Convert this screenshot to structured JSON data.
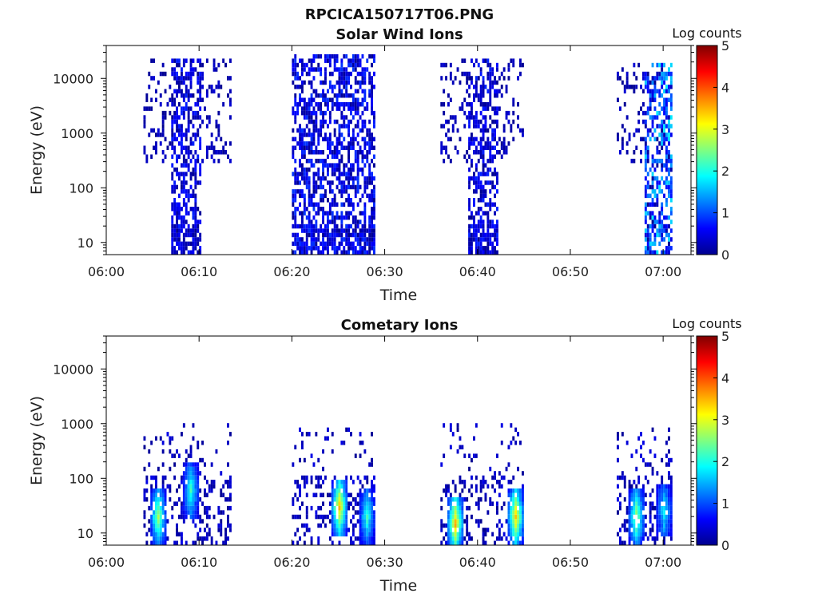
{
  "figure_title": "RPCICA150717T06.PNG",
  "colorbar": {
    "label": "Log counts",
    "min": 0,
    "max": 5,
    "ticks": [
      "0",
      "1",
      "2",
      "3",
      "4",
      "5"
    ]
  },
  "chart_data": [
    {
      "type": "heatmap",
      "title": "Solar Wind Ions",
      "xlabel": "Time",
      "ylabel": "Energy (eV)",
      "xlim": [
        "06:00",
        "07:03"
      ],
      "ylim": [
        6,
        40000
      ],
      "yscale": "log",
      "xticks": [
        "06:00",
        "06:10",
        "06:20",
        "06:30",
        "06:40",
        "06:50",
        "07:00"
      ],
      "yticks": [
        "10",
        "100",
        "1000",
        "10000"
      ],
      "bursts": [
        {
          "start": "06:04",
          "end": "06:13.5",
          "core_start": "06:07",
          "core_end": "06:10",
          "emax": 25000,
          "core_emin": 6,
          "level_peak": 0.5
        },
        {
          "start": "06:20",
          "end": "06:29",
          "core_start": "06:20",
          "core_end": "06:29",
          "emax": 30000,
          "core_emin": 6,
          "level_peak": 0.6
        },
        {
          "start": "06:36",
          "end": "06:45",
          "core_start": "06:39",
          "core_end": "06:42",
          "emax": 25000,
          "core_emin": 6,
          "level_peak": 0.5
        },
        {
          "start": "06:55",
          "end": "07:01",
          "core_start": "06:58",
          "core_end": "07:01",
          "emax": 20000,
          "core_emin": 6,
          "level_peak": 1.5
        }
      ]
    },
    {
      "type": "heatmap",
      "title": "Cometary Ions",
      "xlabel": "Time",
      "ylabel": "Energy (eV)",
      "xlim": [
        "06:00",
        "07:03"
      ],
      "ylim": [
        6,
        40000
      ],
      "yscale": "log",
      "xticks": [
        "06:00",
        "06:10",
        "06:20",
        "06:30",
        "06:40",
        "06:50",
        "07:00"
      ],
      "yticks": [
        "10",
        "100",
        "1000",
        "10000"
      ],
      "bursts": [
        {
          "start": "06:04",
          "end": "06:13.5",
          "emax": 1000,
          "peaks": [
            {
              "time": "06:05.5",
              "energy": 20,
              "level": 2.6
            },
            {
              "time": "06:09",
              "energy": 60,
              "level": 2.0
            }
          ]
        },
        {
          "start": "06:20",
          "end": "06:29",
          "emax": 900,
          "peaks": [
            {
              "time": "06:25",
              "energy": 30,
              "level": 3.3
            },
            {
              "time": "06:28",
              "energy": 20,
              "level": 2.0
            }
          ]
        },
        {
          "start": "06:36",
          "end": "06:45",
          "emax": 1100,
          "peaks": [
            {
              "time": "06:37.5",
              "energy": 15,
              "level": 3.4
            },
            {
              "time": "06:44",
              "energy": 20,
              "level": 3.3
            }
          ]
        },
        {
          "start": "06:55",
          "end": "07:01",
          "emax": 800,
          "peaks": [
            {
              "time": "06:57",
              "energy": 20,
              "level": 2.6
            },
            {
              "time": "07:00",
              "energy": 25,
              "level": 1.8
            }
          ]
        }
      ]
    }
  ]
}
